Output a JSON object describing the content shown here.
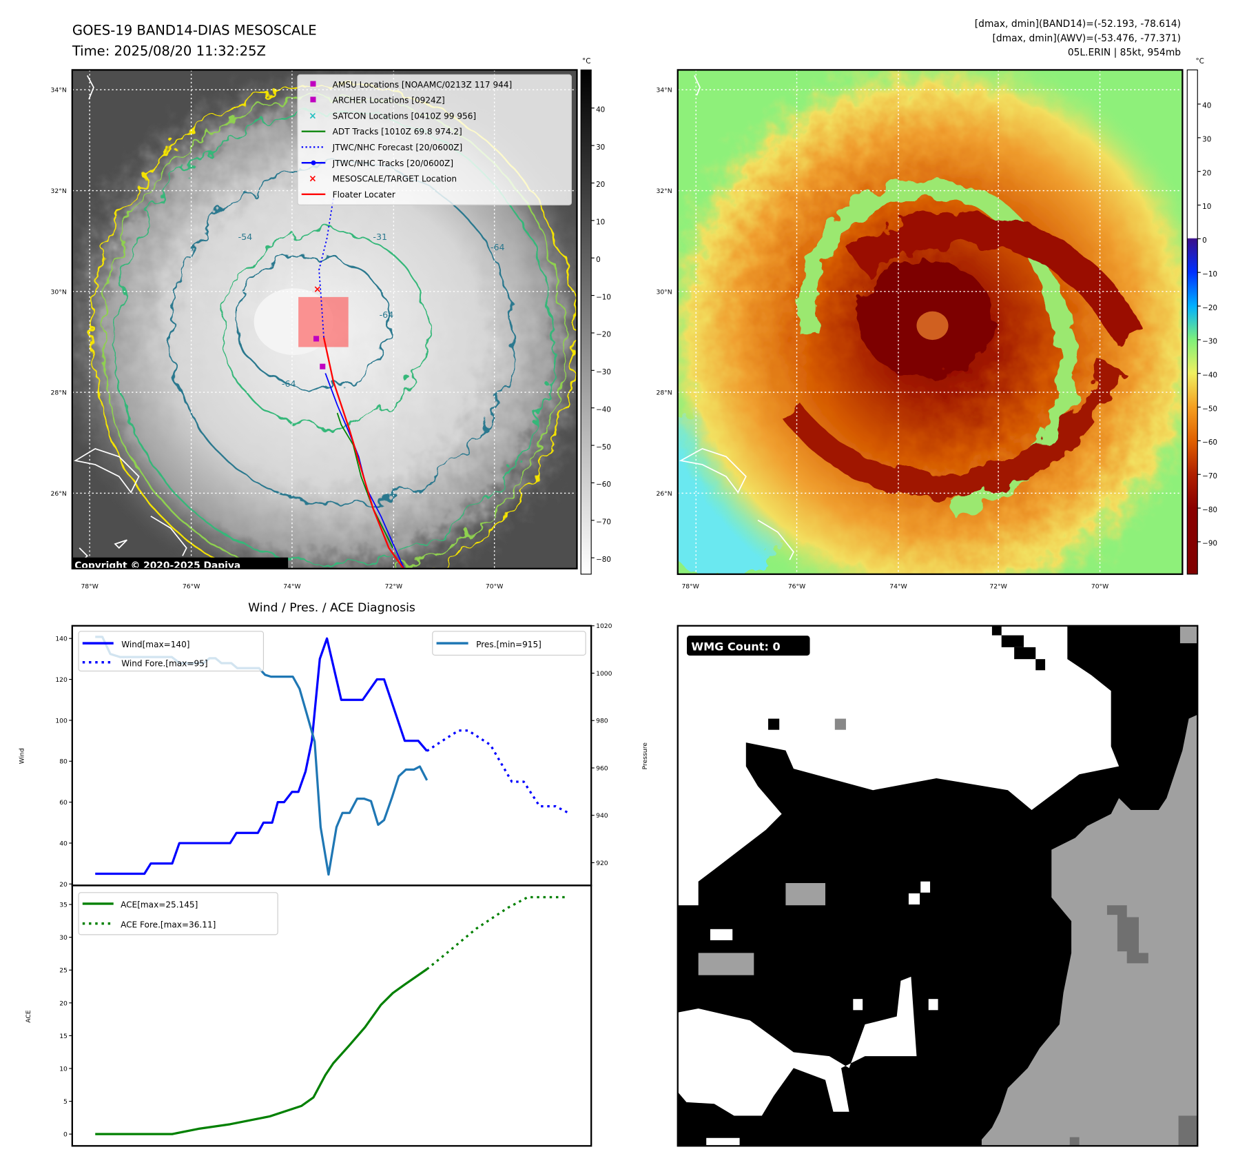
{
  "header": {
    "title": "GOES-19 BAND14-DIAS MESOSCALE",
    "time": "Time: 2025/08/20 11:32:25Z",
    "stats": [
      "[dmax, dmin](BAND14)=(-52.193, -78.614)",
      "[dmax, dmin](AWV)=(-53.476, -77.371)",
      "05L.ERIN | 85kt, 954mb"
    ]
  },
  "maps": {
    "lat_labels": [
      "34°N",
      "32°N",
      "30°N",
      "28°N",
      "26°N"
    ],
    "lon_labels": [
      "78°W",
      "76°W",
      "74°W",
      "72°W",
      "70°W"
    ],
    "copyright": "Copyright © 2020-2025 Dapiya",
    "contour_labels": [
      "-64",
      "-31",
      "-54",
      "-64",
      "-64"
    ],
    "colorbar_unit": "°C",
    "colorbar1_ticks": [
      "40",
      "30",
      "20",
      "10",
      "0",
      "−10",
      "−20",
      "−30",
      "−40",
      "−50",
      "−60",
      "−70",
      "−80"
    ],
    "colorbar2_ticks": [
      "40",
      "30",
      "20",
      "10",
      "0",
      "−10",
      "−20",
      "−30",
      "−40",
      "−50",
      "−60",
      "−70",
      "−80",
      "−90"
    ],
    "legend": [
      {
        "label": "AMSU Locations [NOAAMC/0213Z 117 944]",
        "marker": "square",
        "color": "#c000c0"
      },
      {
        "label": "ARCHER Locations [0924Z]",
        "marker": "square",
        "color": "#c000c0"
      },
      {
        "label": "SATCON Locations [0410Z 99 956]",
        "marker": "x",
        "color": "#20c0c0"
      },
      {
        "label": "ADT Tracks [1010Z 69.8 974.2]",
        "marker": "line",
        "color": "#008000"
      },
      {
        "label": "JTWC/NHC Forecast [20/0600Z]",
        "marker": "dotted",
        "color": "#0000ff"
      },
      {
        "label": "JTWC/NHC Tracks [20/0600Z]",
        "marker": "line-dot",
        "color": "#0000ff"
      },
      {
        "label": "MESOSCALE/TARGET Location",
        "marker": "x",
        "color": "#ff0000"
      },
      {
        "label": "Floater Locater",
        "marker": "line",
        "color": "#ff0000"
      }
    ]
  },
  "chart_data": [
    {
      "type": "line",
      "title": "Wind / Pres. / ACE Diagnosis",
      "ylabel": "Wind",
      "ylabel_right": "Pressure",
      "ylim": [
        19.3,
        146.2
      ],
      "ylim_right": [
        910.4,
        1020
      ],
      "xlim": [
        -11.6,
        250
      ],
      "yticks": [
        20,
        40,
        60,
        80,
        100,
        120,
        140
      ],
      "yticks_right": [
        920,
        940,
        960,
        980,
        1000,
        1020
      ],
      "legend": [
        "Wind[max=140]",
        "Wind Fore.[max=95]",
        "Pres.[min=915]"
      ],
      "series": [
        {
          "name": "Wind[max=140]",
          "axis": "left",
          "color": "#0000ff",
          "style": "solid",
          "x": [
            0,
            24.8,
            28,
            38.8,
            42.4,
            68,
            71.2,
            82,
            84.8,
            89.2,
            92,
            95.2,
            99.2,
            102.4,
            106,
            109.2,
            113.2,
            116.8,
            124,
            134.8,
            142,
            145.6,
            156,
            162.8,
            167.2
          ],
          "y": [
            25,
            25,
            30,
            30,
            40,
            40,
            45,
            45,
            50,
            50,
            60,
            60,
            65,
            65,
            75,
            90,
            130,
            140,
            110,
            110,
            120,
            120,
            90,
            90,
            85
          ]
        },
        {
          "name": "Wind Fore.[max=95]",
          "axis": "left",
          "color": "#0000ff",
          "style": "dotted",
          "x": [
            167.2,
            175,
            183.2,
            188,
            199.2,
            210,
            216,
            224,
            232,
            238
          ],
          "y": [
            85,
            90,
            95,
            95,
            88,
            70,
            70,
            58,
            58,
            55
          ]
        },
        {
          "name": "Pres.[min=915]",
          "axis": "right",
          "color": "#1f77b4",
          "style": "solid",
          "x": [
            0,
            3.6,
            7.6,
            12.6,
            38.6,
            42.6,
            54.6,
            57.6,
            60.6,
            63.6,
            68.6,
            71.6,
            82.6,
            85.6,
            88.6,
            99.6,
            103,
            106.6,
            110.6,
            113.6,
            117.6,
            121.6,
            124.6,
            128.2,
            132,
            135.6,
            139,
            142.6,
            145.6,
            149.6,
            153,
            156.6,
            160.6,
            163.6,
            167.2
          ],
          "y": [
            1015.3,
            1015.3,
            1008.1,
            1006.8,
            1006.8,
            1004.2,
            1004.2,
            1006.3,
            1006.3,
            1004.2,
            1004.2,
            1002.1,
            1002.1,
            999.3,
            998.5,
            998.5,
            993.4,
            982.9,
            971.1,
            935,
            915,
            935,
            941,
            941,
            947,
            947,
            946,
            936,
            938,
            947.6,
            956.5,
            959.3,
            959.3,
            960.6,
            954.8
          ]
        }
      ]
    },
    {
      "type": "line",
      "title": "",
      "ylabel": "ACE",
      "ylim": [
        -1.8,
        37.9
      ],
      "xlim": [
        -11.6,
        250
      ],
      "yticks": [
        0,
        5,
        10,
        15,
        20,
        25,
        30,
        35
      ],
      "legend": [
        "ACE[max=25.145]",
        "ACE Fore.[max=36.11]"
      ],
      "series": [
        {
          "name": "ACE[max=25.145]",
          "color": "#008000",
          "style": "solid",
          "x": [
            0,
            38.8,
            52,
            68,
            88,
            104,
            110,
            116,
            120,
            128,
            136,
            144,
            150,
            156,
            167.2
          ],
          "y": [
            0,
            0,
            0.8,
            1.5,
            2.7,
            4.3,
            5.6,
            9,
            10.8,
            13.5,
            16.3,
            19.7,
            21.5,
            22.8,
            25.145
          ]
        },
        {
          "name": "ACE Fore.[max=36.11]",
          "color": "#008000",
          "style": "dotted",
          "x": [
            167.2,
            176,
            192,
            208,
            218,
            238
          ],
          "y": [
            25.145,
            27.3,
            31.3,
            34.5,
            36.11,
            36.11
          ]
        }
      ]
    }
  ],
  "wmg": {
    "label": "WMG Count: 0"
  }
}
